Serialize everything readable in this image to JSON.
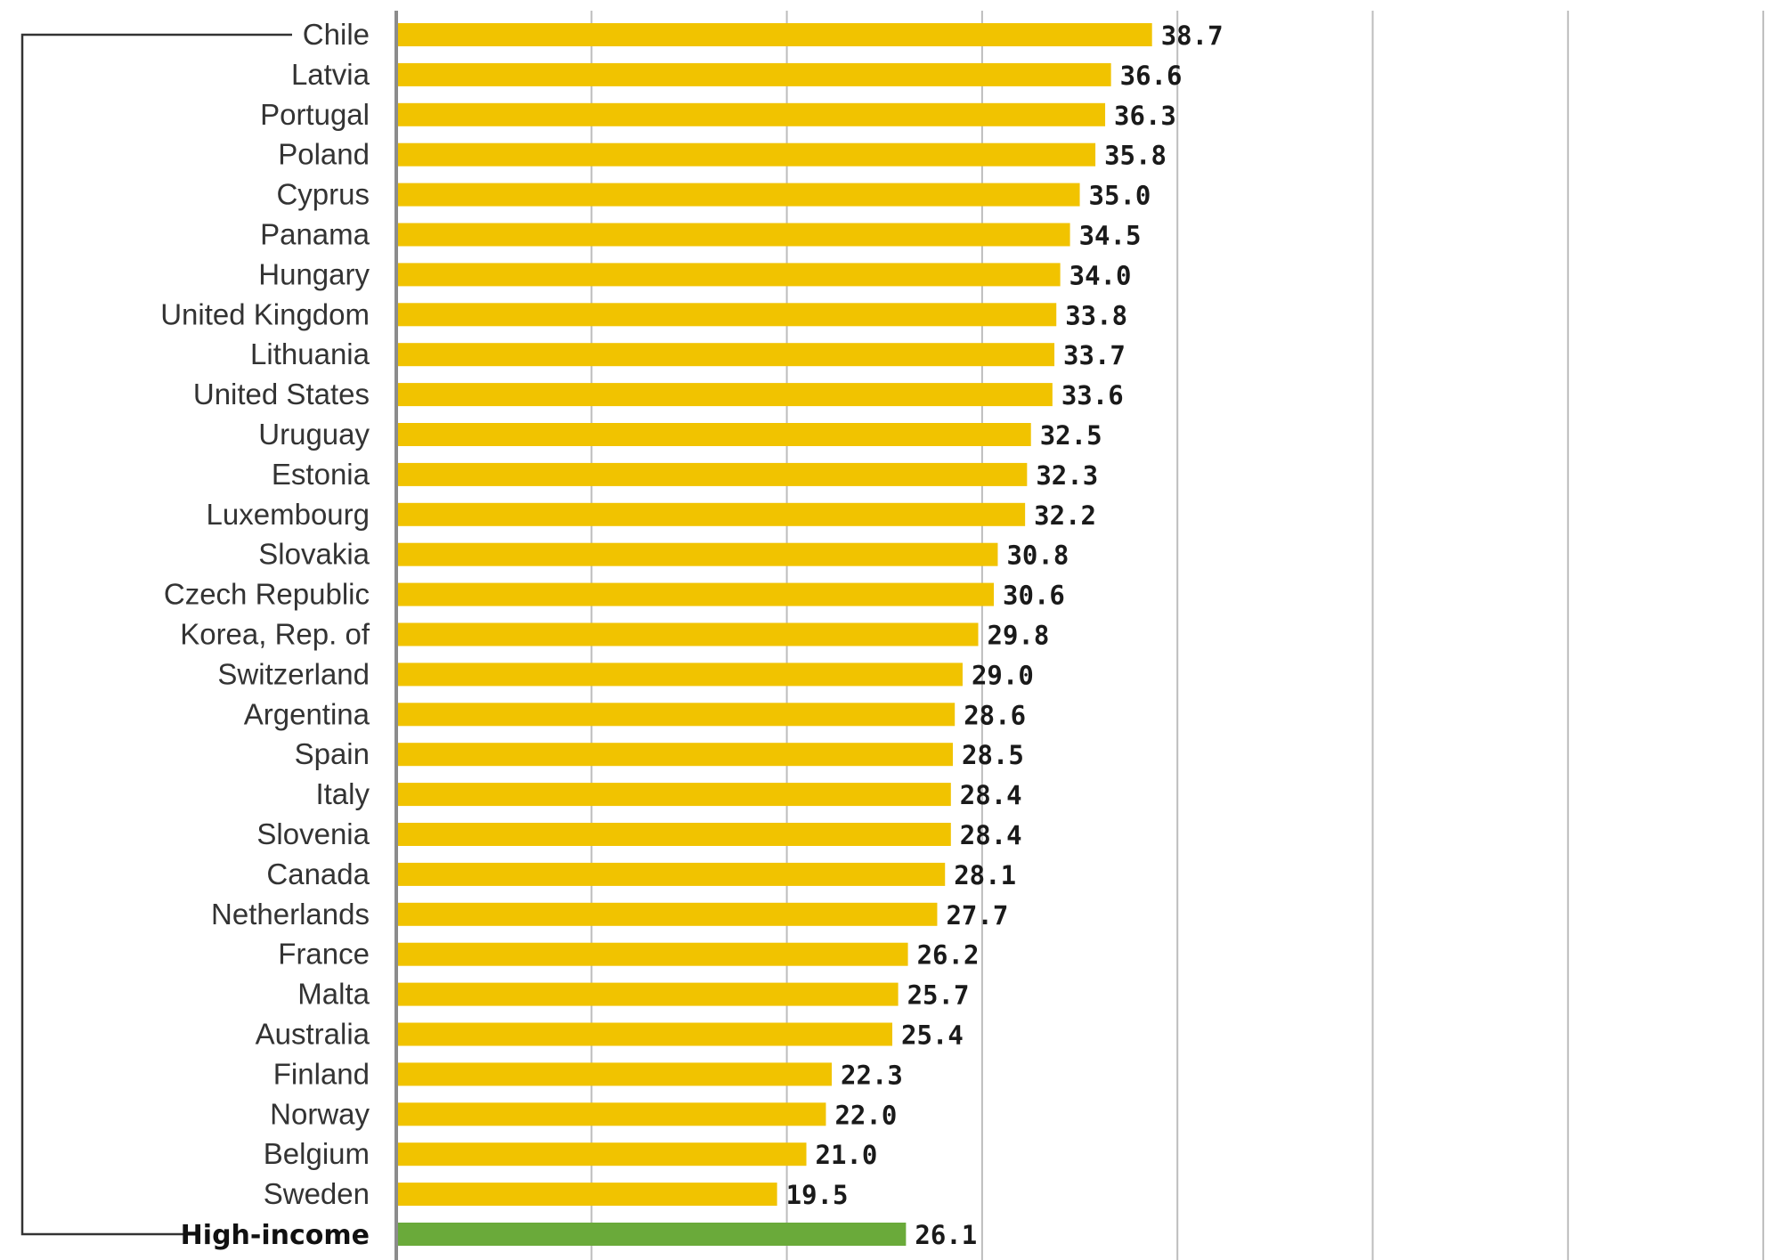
{
  "chart_data": {
    "type": "bar",
    "orientation": "horizontal",
    "categories": [
      "Chile",
      "Latvia",
      "Portugal",
      "Poland",
      "Cyprus",
      "Panama",
      "Hungary",
      "United Kingdom",
      "Lithuania",
      "United States",
      "Uruguay",
      "Estonia",
      "Luxembourg",
      "Slovakia",
      "Czech Republic",
      "Korea, Rep. of",
      "Switzerland",
      "Argentina",
      "Spain",
      "Italy",
      "Slovenia",
      "Canada",
      "Netherlands",
      "France",
      "Malta",
      "Australia",
      "Finland",
      "Norway",
      "Belgium",
      "Sweden",
      "High-income"
    ],
    "values": [
      38.7,
      36.6,
      36.3,
      35.8,
      35.0,
      34.5,
      34.0,
      33.8,
      33.7,
      33.6,
      32.5,
      32.3,
      32.2,
      30.8,
      30.6,
      29.8,
      29.0,
      28.6,
      28.5,
      28.4,
      28.4,
      28.1,
      27.7,
      26.2,
      25.7,
      25.4,
      22.3,
      22.0,
      21.0,
      19.5,
      26.1
    ],
    "value_labels": [
      "38.7",
      "36.6",
      "36.3",
      "35.8",
      "35.0",
      "34.5",
      "34.0",
      "33.8",
      "33.7",
      "33.6",
      "32.5",
      "32.3",
      "32.2",
      "30.8",
      "30.6",
      "29.8",
      "29.0",
      "28.6",
      "28.5",
      "28.4",
      "28.4",
      "28.1",
      "27.7",
      "26.2",
      "25.7",
      "25.4",
      "22.3",
      "22.0",
      "21.0",
      "19.5",
      "26.1"
    ],
    "highlight_category": "High-income",
    "xlim": [
      0,
      70
    ],
    "gridline_step": 10,
    "grid": true,
    "title": "",
    "xlabel": "",
    "ylabel": "",
    "colors": {
      "bar": "#f1c300",
      "highlight_bar": "#6aaa3a"
    }
  }
}
